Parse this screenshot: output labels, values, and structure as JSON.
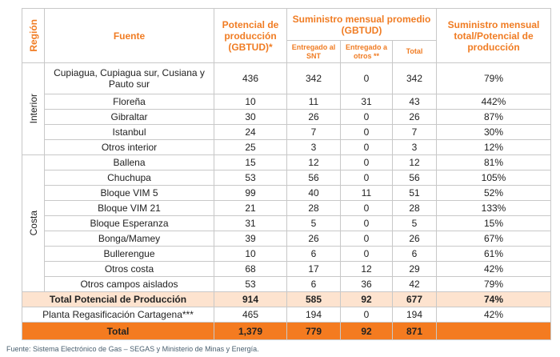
{
  "header": {
    "region": "Región",
    "fuente": "Fuente",
    "potencial": "Potencial de producción (GBTUD)*",
    "suministro": "Suministro mensual promedio (GBTUD)",
    "entregado_snt": "Entregado al SNT",
    "entregado_otros": "Entregado a otros **",
    "total": "Total",
    "ratio": "Suministro mensual total/Potencial de producción"
  },
  "groups": [
    {
      "region": "Interior",
      "rows": [
        [
          "Cupiagua, Cupiagua sur, Cusiana y Pauto sur",
          "436",
          "342",
          "0",
          "342",
          "79%"
        ],
        [
          "Floreña",
          "10",
          "11",
          "31",
          "43",
          "442%"
        ],
        [
          "Gibraltar",
          "30",
          "26",
          "0",
          "26",
          "87%"
        ],
        [
          "Istanbul",
          "24",
          "7",
          "0",
          "7",
          "30%"
        ],
        [
          "Otros interior",
          "25",
          "3",
          "0",
          "3",
          "12%"
        ]
      ]
    },
    {
      "region": "Costa",
      "rows": [
        [
          "Ballena",
          "15",
          "12",
          "0",
          "12",
          "81%"
        ],
        [
          "Chuchupa",
          "53",
          "56",
          "0",
          "56",
          "105%"
        ],
        [
          "Bloque VIM 5",
          "99",
          "40",
          "11",
          "51",
          "52%"
        ],
        [
          "Bloque VIM 21",
          "21",
          "28",
          "0",
          "28",
          "133%"
        ],
        [
          "Bloque Esperanza",
          "31",
          "5",
          "0",
          "5",
          "15%"
        ],
        [
          "Bonga/Mamey",
          "39",
          "26",
          "0",
          "26",
          "67%"
        ],
        [
          "Bullerengue",
          "10",
          "6",
          "0",
          "6",
          "61%"
        ],
        [
          "Otros costa",
          "68",
          "17",
          "12",
          "29",
          "42%"
        ],
        [
          "Otros campos aislados",
          "53",
          "6",
          "36",
          "42",
          "79%"
        ]
      ]
    }
  ],
  "subtotal": [
    "Total Potencial de Producción",
    "914",
    "585",
    "92",
    "677",
    "74%"
  ],
  "planta": [
    "Planta Regasificación Cartagena***",
    "465",
    "194",
    "0",
    "194",
    "42%"
  ],
  "total": [
    "Total",
    "1,379",
    "779",
    "92",
    "871"
  ],
  "footer": "Fuente: Sistema Electrónico de Gas – SEGAS y Ministerio de Minas y Energía."
}
